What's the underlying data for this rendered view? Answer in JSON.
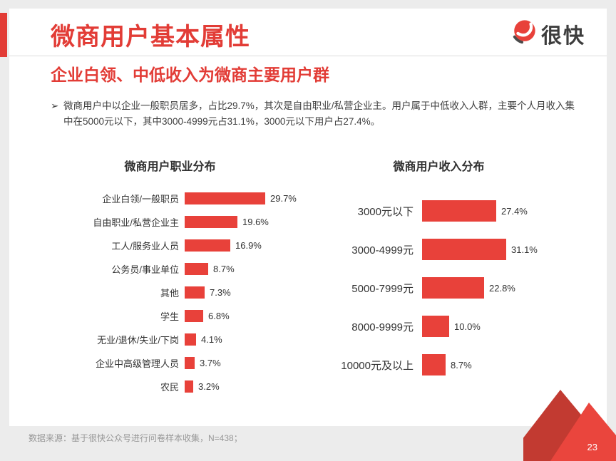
{
  "header": {
    "title": "微商用户基本属性",
    "subtitle": "企业白领、中低收入为微商主要用户群",
    "logo_text": "很快"
  },
  "bullet": {
    "marker": "➢",
    "text": "微商用户中以企业一般职员居多，占比29.7%，其次是自由职业/私营企业主。用户属于中低收入人群，主要个人月收入集中在5000元以下，其中3000-4999元占31.1%，3000元以下用户占27.4%。"
  },
  "chart_data": [
    {
      "type": "bar",
      "orientation": "horizontal",
      "title": "微商用户职业分布",
      "categories": [
        "企业白领/一般职员",
        "自由职业/私营企业主",
        "工人/服务业人员",
        "公务员/事业单位",
        "其他",
        "学生",
        "无业/退休/失业/下岗",
        "企业中高级管理人员",
        "农民"
      ],
      "values": [
        29.7,
        19.6,
        16.9,
        8.7,
        7.3,
        6.8,
        4.1,
        3.7,
        3.2
      ],
      "value_labels": [
        "29.7%",
        "19.6%",
        "16.9%",
        "8.7%",
        "7.3%",
        "6.8%",
        "4.1%",
        "3.7%",
        "3.2%"
      ],
      "xlim": [
        0,
        32
      ],
      "grid": false,
      "legend": "none",
      "bar_color": "#e8413a"
    },
    {
      "type": "bar",
      "orientation": "horizontal",
      "title": "微商用户收入分布",
      "categories": [
        "3000元以下",
        "3000-4999元",
        "5000-7999元",
        "8000-9999元",
        "10000元及以上"
      ],
      "values": [
        27.4,
        31.1,
        22.8,
        10.0,
        8.7
      ],
      "value_labels": [
        "27.4%",
        "31.1%",
        "22.8%",
        "10.0%",
        "8.7%"
      ],
      "xlim": [
        0,
        33
      ],
      "grid": false,
      "legend": "none",
      "bar_color": "#e8413a"
    }
  ],
  "footer": {
    "source": "数据来源：基于很快公众号进行问卷样本收集，N=438；",
    "page_number": "23"
  },
  "colors": {
    "accent_red": "#e23c36",
    "bar_red": "#e8413a",
    "triangle_dark": "#c23a31",
    "triangle_bright": "#ea453d",
    "logo_dark": "#3d3d3d"
  }
}
